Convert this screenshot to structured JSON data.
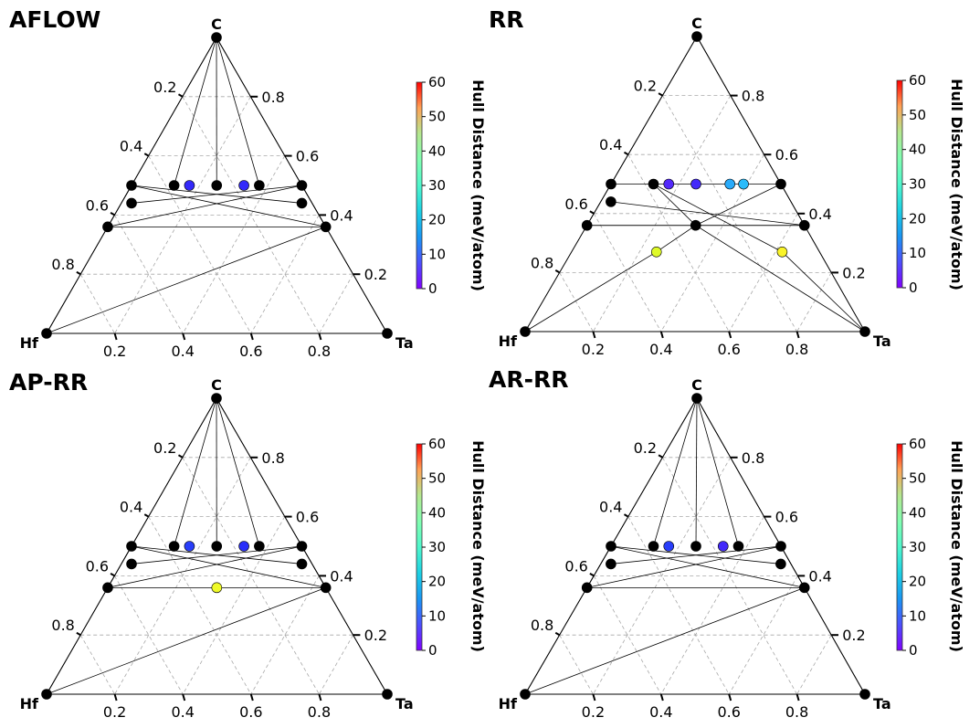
{
  "chart_data": [
    {
      "type": "scatter",
      "title": "AFLOW",
      "vertices": {
        "top": "C",
        "left": "Hf",
        "right": "Ta"
      },
      "ticks": [
        "0.2",
        "0.4",
        "0.6",
        "0.8"
      ],
      "colorbar": {
        "label": "Hull Distance (meV/atom)",
        "range": [
          0,
          60
        ],
        "ticks": [
          "0",
          "10",
          "20",
          "30",
          "40",
          "50",
          "60"
        ]
      },
      "points": [
        {
          "hf": 1,
          "ta": 0,
          "c": 0,
          "hull": 0
        },
        {
          "hf": 0,
          "ta": 1,
          "c": 0,
          "hull": 0
        },
        {
          "hf": 0,
          "ta": 0,
          "c": 1,
          "hull": 0
        },
        {
          "hf": 0.5,
          "ta": 0,
          "c": 0.5,
          "hull": 0
        },
        {
          "hf": 0.25,
          "ta": 0.25,
          "c": 0.5,
          "hull": 0
        },
        {
          "hf": 0.375,
          "ta": 0.125,
          "c": 0.5,
          "hull": 0
        },
        {
          "hf": 0.125,
          "ta": 0.375,
          "c": 0.5,
          "hull": 0
        },
        {
          "hf": 0,
          "ta": 0.5,
          "c": 0.5,
          "hull": 0
        },
        {
          "hf": 0.53,
          "ta": 0.03,
          "c": 0.44,
          "hull": 0
        },
        {
          "hf": 0.03,
          "ta": 0.53,
          "c": 0.44,
          "hull": 0
        },
        {
          "hf": 0.64,
          "ta": 0,
          "c": 0.36,
          "hull": 0
        },
        {
          "hf": 0,
          "ta": 0.64,
          "c": 0.36,
          "hull": 0
        },
        {
          "hf": 0.33,
          "ta": 0.17,
          "c": 0.5,
          "hull": 6
        },
        {
          "hf": 0.17,
          "ta": 0.33,
          "c": 0.5,
          "hull": 6
        }
      ],
      "tie_lines": [
        [
          2,
          0
        ],
        [
          2,
          1
        ],
        [
          2,
          4
        ],
        [
          2,
          5
        ],
        [
          2,
          6
        ],
        [
          3,
          9
        ],
        [
          3,
          10
        ],
        [
          3,
          11
        ],
        [
          7,
          8
        ],
        [
          7,
          10
        ],
        [
          7,
          11
        ],
        [
          10,
          11
        ],
        [
          0,
          11
        ]
      ]
    },
    {
      "type": "scatter",
      "title": "RR",
      "vertices": {
        "top": "C",
        "left": "Hf",
        "right": "Ta"
      },
      "ticks": [
        "0.2",
        "0.4",
        "0.6",
        "0.8"
      ],
      "colorbar": {
        "label": "Hull Distance (meV/atom)",
        "range": [
          0,
          60
        ],
        "ticks": [
          "0",
          "10",
          "20",
          "30",
          "40",
          "50",
          "60"
        ]
      },
      "points": [
        {
          "hf": 1,
          "ta": 0,
          "c": 0,
          "hull": 0
        },
        {
          "hf": 0,
          "ta": 1,
          "c": 0,
          "hull": 0
        },
        {
          "hf": 0,
          "ta": 0,
          "c": 1,
          "hull": 0
        },
        {
          "hf": 0.5,
          "ta": 0,
          "c": 0.5,
          "hull": 0
        },
        {
          "hf": 0.375,
          "ta": 0.125,
          "c": 0.5,
          "hull": 0
        },
        {
          "hf": 0,
          "ta": 0.5,
          "c": 0.5,
          "hull": 0
        },
        {
          "hf": 0.53,
          "ta": 0.03,
          "c": 0.44,
          "hull": 0
        },
        {
          "hf": 0.64,
          "ta": 0,
          "c": 0.36,
          "hull": 0
        },
        {
          "hf": 0.32,
          "ta": 0.32,
          "c": 0.36,
          "hull": 0
        },
        {
          "hf": 0,
          "ta": 0.64,
          "c": 0.36,
          "hull": 0
        },
        {
          "hf": 0.33,
          "ta": 0.17,
          "c": 0.5,
          "hull": 4
        },
        {
          "hf": 0.25,
          "ta": 0.25,
          "c": 0.5,
          "hull": 5
        },
        {
          "hf": 0.15,
          "ta": 0.35,
          "c": 0.5,
          "hull": 15
        },
        {
          "hf": 0.11,
          "ta": 0.39,
          "c": 0.5,
          "hull": 16
        },
        {
          "hf": 0.48,
          "ta": 0.25,
          "c": 0.27,
          "hull": 45
        },
        {
          "hf": 0.11,
          "ta": 0.62,
          "c": 0.27,
          "hull": 47
        }
      ],
      "tie_lines": [
        [
          2,
          7
        ],
        [
          2,
          9
        ],
        [
          3,
          5
        ],
        [
          6,
          9
        ],
        [
          7,
          9
        ],
        [
          7,
          8
        ],
        [
          8,
          9
        ],
        [
          8,
          4
        ],
        [
          8,
          5
        ],
        [
          8,
          1
        ],
        [
          8,
          14
        ],
        [
          14,
          0
        ],
        [
          4,
          15
        ],
        [
          15,
          1
        ]
      ]
    },
    {
      "type": "scatter",
      "title": "AP-RR",
      "vertices": {
        "top": "C",
        "left": "Hf",
        "right": "Ta"
      },
      "ticks": [
        "0.2",
        "0.4",
        "0.6",
        "0.8"
      ],
      "colorbar": {
        "label": "Hull Distance (meV/atom)",
        "range": [
          0,
          60
        ],
        "ticks": [
          "0",
          "10",
          "20",
          "30",
          "40",
          "50",
          "60"
        ]
      },
      "points": [
        {
          "hf": 1,
          "ta": 0,
          "c": 0,
          "hull": 0
        },
        {
          "hf": 0,
          "ta": 1,
          "c": 0,
          "hull": 0
        },
        {
          "hf": 0,
          "ta": 0,
          "c": 1,
          "hull": 0
        },
        {
          "hf": 0.5,
          "ta": 0,
          "c": 0.5,
          "hull": 0
        },
        {
          "hf": 0.25,
          "ta": 0.25,
          "c": 0.5,
          "hull": 0
        },
        {
          "hf": 0.375,
          "ta": 0.125,
          "c": 0.5,
          "hull": 0
        },
        {
          "hf": 0.125,
          "ta": 0.375,
          "c": 0.5,
          "hull": 0
        },
        {
          "hf": 0,
          "ta": 0.5,
          "c": 0.5,
          "hull": 0
        },
        {
          "hf": 0.53,
          "ta": 0.03,
          "c": 0.44,
          "hull": 0
        },
        {
          "hf": 0.03,
          "ta": 0.53,
          "c": 0.44,
          "hull": 0
        },
        {
          "hf": 0.64,
          "ta": 0,
          "c": 0.36,
          "hull": 0
        },
        {
          "hf": 0,
          "ta": 0.64,
          "c": 0.36,
          "hull": 0
        },
        {
          "hf": 0.33,
          "ta": 0.17,
          "c": 0.5,
          "hull": 8
        },
        {
          "hf": 0.17,
          "ta": 0.33,
          "c": 0.5,
          "hull": 7
        },
        {
          "hf": 0.32,
          "ta": 0.32,
          "c": 0.36,
          "hull": 46
        }
      ],
      "tie_lines": [
        [
          2,
          0
        ],
        [
          2,
          1
        ],
        [
          2,
          4
        ],
        [
          2,
          5
        ],
        [
          2,
          6
        ],
        [
          3,
          9
        ],
        [
          3,
          10
        ],
        [
          3,
          11
        ],
        [
          7,
          8
        ],
        [
          7,
          10
        ],
        [
          7,
          11
        ],
        [
          10,
          11
        ],
        [
          0,
          11
        ]
      ]
    },
    {
      "type": "scatter",
      "title": "AR-RR",
      "vertices": {
        "top": "C",
        "left": "Hf",
        "right": "Ta"
      },
      "ticks": [
        "0.2",
        "0.4",
        "0.6",
        "0.8"
      ],
      "colorbar": {
        "label": "Hull Distance (meV/atom)",
        "range": [
          0,
          60
        ],
        "ticks": [
          "0",
          "10",
          "20",
          "30",
          "40",
          "50",
          "60"
        ]
      },
      "points": [
        {
          "hf": 1,
          "ta": 0,
          "c": 0,
          "hull": 0
        },
        {
          "hf": 0,
          "ta": 1,
          "c": 0,
          "hull": 0
        },
        {
          "hf": 0,
          "ta": 0,
          "c": 1,
          "hull": 0
        },
        {
          "hf": 0.5,
          "ta": 0,
          "c": 0.5,
          "hull": 0
        },
        {
          "hf": 0.25,
          "ta": 0.25,
          "c": 0.5,
          "hull": 0
        },
        {
          "hf": 0.375,
          "ta": 0.125,
          "c": 0.5,
          "hull": 0
        },
        {
          "hf": 0.125,
          "ta": 0.375,
          "c": 0.5,
          "hull": 0
        },
        {
          "hf": 0,
          "ta": 0.5,
          "c": 0.5,
          "hull": 0
        },
        {
          "hf": 0.53,
          "ta": 0.03,
          "c": 0.44,
          "hull": 0
        },
        {
          "hf": 0.03,
          "ta": 0.53,
          "c": 0.44,
          "hull": 0
        },
        {
          "hf": 0.64,
          "ta": 0,
          "c": 0.36,
          "hull": 0
        },
        {
          "hf": 0,
          "ta": 0.64,
          "c": 0.36,
          "hull": 0
        },
        {
          "hf": 0.33,
          "ta": 0.17,
          "c": 0.5,
          "hull": 8
        },
        {
          "hf": 0.17,
          "ta": 0.33,
          "c": 0.5,
          "hull": 5
        }
      ],
      "tie_lines": [
        [
          2,
          0
        ],
        [
          2,
          1
        ],
        [
          2,
          4
        ],
        [
          2,
          5
        ],
        [
          2,
          6
        ],
        [
          3,
          9
        ],
        [
          3,
          10
        ],
        [
          3,
          11
        ],
        [
          7,
          8
        ],
        [
          7,
          10
        ],
        [
          7,
          11
        ],
        [
          10,
          11
        ],
        [
          0,
          11
        ]
      ]
    }
  ]
}
